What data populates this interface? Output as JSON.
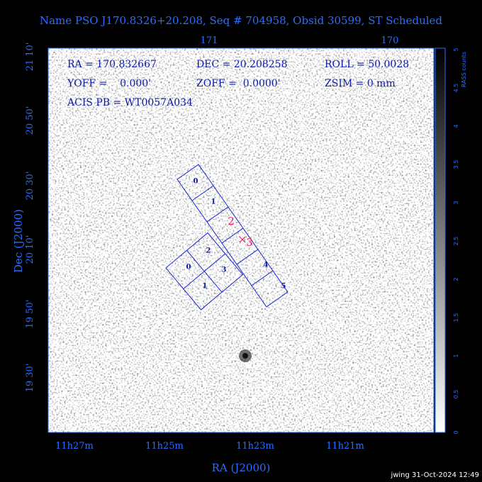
{
  "header": {
    "title": "Name PSO J170.8326+20.208, Seq # 704958, Obsid 30599, ST Scheduled"
  },
  "pointing": {
    "ra": "RA = 170.832667",
    "dec": "DEC = 20.208258",
    "roll": "ROLL = 50.0028",
    "yoff": "YOFF =    0.000'",
    "zoff": "ZOFF =  0.0000'",
    "zsim": "ZSIM = 0 mm",
    "acis": "ACIS PB = WT0057A034"
  },
  "acis_s_chips": [
    "0",
    "1",
    "2",
    "3",
    "4",
    "5"
  ],
  "acis_i_chips": [
    "0",
    "1",
    "2",
    "3"
  ],
  "top_axis": {
    "ticks": [
      "171",
      "170"
    ]
  },
  "left_axis": {
    "label": "Dec (J2000)",
    "ticks": [
      "21 10'",
      "20 50'",
      "20 30'",
      "20 10'",
      "19 50'",
      "19 30'"
    ]
  },
  "bottom_axis": {
    "label": "RA (J2000)",
    "ticks": [
      "11h27m",
      "11h25m",
      "11h23m",
      "11h21m"
    ]
  },
  "colorbar": {
    "label": "RASS counts",
    "ticks": [
      "0",
      "0.5",
      "1",
      "1.5",
      "2",
      "2.5",
      "3",
      "3.5",
      "4",
      "4.5",
      "5"
    ]
  },
  "footer": "jwing 31-Oct-2024 12:49"
}
